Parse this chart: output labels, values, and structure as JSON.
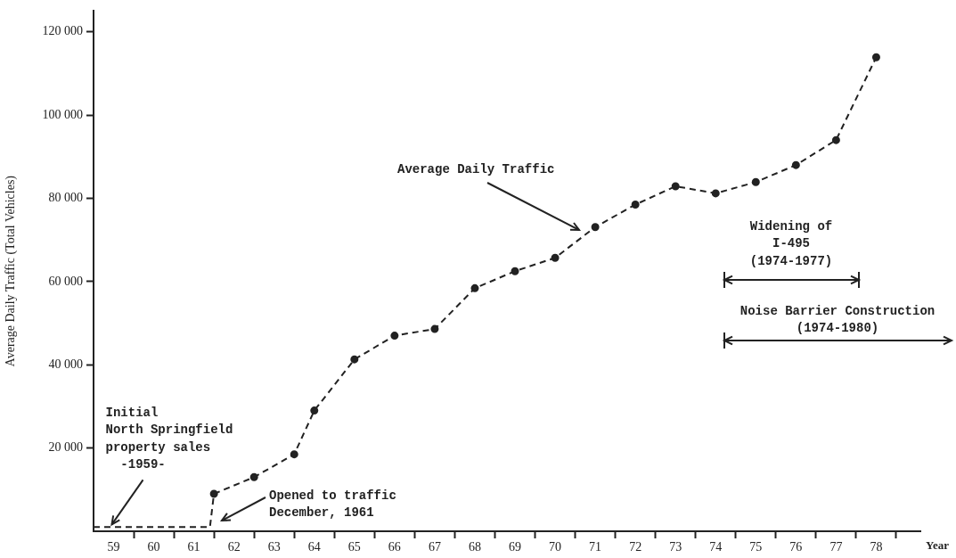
{
  "chart_data": {
    "type": "line",
    "xlabel": "Year",
    "ylabel": "Average Daily Traffic (Total Vehicles)",
    "xlim": [
      58.5,
      79.1
    ],
    "ylim": [
      0,
      125000
    ],
    "xticks": [
      {
        "value": 59,
        "label": "59"
      },
      {
        "value": 60,
        "label": "60"
      },
      {
        "value": 61,
        "label": "61"
      },
      {
        "value": 62,
        "label": "62"
      },
      {
        "value": 63,
        "label": "63"
      },
      {
        "value": 64,
        "label": "64"
      },
      {
        "value": 65,
        "label": "65"
      },
      {
        "value": 66,
        "label": "66"
      },
      {
        "value": 67,
        "label": "67"
      },
      {
        "value": 68,
        "label": "68"
      },
      {
        "value": 69,
        "label": "69"
      },
      {
        "value": 70,
        "label": "70"
      },
      {
        "value": 71,
        "label": "71"
      },
      {
        "value": 72,
        "label": "72"
      },
      {
        "value": 73,
        "label": "73"
      },
      {
        "value": 74,
        "label": "74"
      },
      {
        "value": 75,
        "label": "75"
      },
      {
        "value": 76,
        "label": "76"
      },
      {
        "value": 77,
        "label": "77"
      },
      {
        "value": 78,
        "label": "78"
      },
      {
        "value": 59.5,
        "label": null
      },
      {
        "value": 60.5,
        "label": null
      },
      {
        "value": 61.5,
        "label": null
      },
      {
        "value": 62.5,
        "label": null
      },
      {
        "value": 63.5,
        "label": null
      },
      {
        "value": 64.5,
        "label": null
      },
      {
        "value": 65.5,
        "label": null
      },
      {
        "value": 66.5,
        "label": null
      },
      {
        "value": 67.5,
        "label": null
      },
      {
        "value": 68.5,
        "label": null
      },
      {
        "value": 69.5,
        "label": null
      },
      {
        "value": 70.5,
        "label": null
      },
      {
        "value": 71.5,
        "label": null
      },
      {
        "value": 72.5,
        "label": null
      },
      {
        "value": 73.5,
        "label": null
      },
      {
        "value": 74.5,
        "label": null
      },
      {
        "value": 75.5,
        "label": null
      },
      {
        "value": 76.5,
        "label": null
      },
      {
        "value": 77.5,
        "label": null
      },
      {
        "value": 78.5,
        "label": null
      }
    ],
    "yticks": [
      {
        "value": 20000,
        "label": "20 000"
      },
      {
        "value": 40000,
        "label": "40 000"
      },
      {
        "value": 60000,
        "label": "60 000"
      },
      {
        "value": 80000,
        "label": "80 000"
      },
      {
        "value": 100000,
        "label": "100 000"
      },
      {
        "value": 120000,
        "label": "120 000"
      }
    ],
    "grid": false,
    "legend": false,
    "line_style": "dashed",
    "series": [
      {
        "color": "#222222",
        "marker": "none",
        "x": [
          58.5,
          61.4,
          61.5
        ],
        "values": [
          1000,
          1000,
          9000
        ]
      },
      {
        "color": "#222222",
        "marker": "circle",
        "x": [
          61.5,
          62.5,
          63.5,
          64,
          65,
          66,
          67,
          68,
          69,
          70,
          71,
          72,
          73,
          74,
          75,
          76,
          77,
          78
        ],
        "values": [
          9000,
          13000,
          18500,
          29000,
          41300,
          47000,
          48600,
          58400,
          62500,
          65700,
          73100,
          78500,
          82900,
          81200,
          83900,
          88000,
          94000,
          113900
        ]
      }
    ],
    "annotations": [
      {
        "text": "Initial\nNorth Springfield\nproperty sales\n  -1959-",
        "x": 59,
        "y": 1000
      },
      "Opened to traffic\nDecember, 1961",
      "Average Daily Traffic",
      "Widening of\nI-495\n(1974-1977)",
      "Noise Barrier Construction\n(1974-1980)"
    ]
  }
}
